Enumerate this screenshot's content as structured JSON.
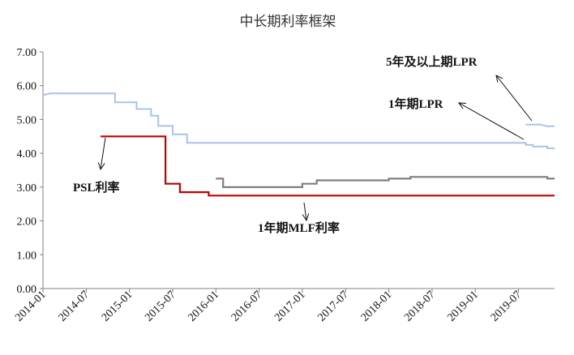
{
  "chart_data": {
    "type": "line",
    "title": "中长期利率框架",
    "xlabel": "",
    "ylabel": "",
    "ylim": [
      0,
      7
    ],
    "yticks": [
      "0.00",
      "1.00",
      "2.00",
      "3.00",
      "4.00",
      "5.00",
      "6.00",
      "7.00"
    ],
    "xlim": [
      "2014-01",
      "2019-12"
    ],
    "xticks": [
      "2014-01",
      "2014-07",
      "2015-01",
      "2015-07",
      "2016-01",
      "2016-07",
      "2017-01",
      "2017-07",
      "2018-01",
      "2018-07",
      "2019-01",
      "2019-07"
    ],
    "grid": false,
    "series": [
      {
        "name": "5年及以上期LPR",
        "color": "#a9c4e6",
        "points": [
          [
            "2019-08",
            4.85
          ],
          [
            "2019-10",
            4.85
          ],
          [
            "2019-11",
            4.8
          ],
          [
            "2019-12",
            4.8
          ]
        ]
      },
      {
        "name": "1年期LPR",
        "color": "#a9c4e6",
        "points": [
          [
            "2014-01",
            5.72
          ],
          [
            "2014-02",
            5.77
          ],
          [
            "2014-11",
            5.77
          ],
          [
            "2014-11",
            5.51
          ],
          [
            "2015-02",
            5.51
          ],
          [
            "2015-02",
            5.31
          ],
          [
            "2015-04",
            5.31
          ],
          [
            "2015-04",
            5.11
          ],
          [
            "2015-05",
            5.11
          ],
          [
            "2015-05",
            4.81
          ],
          [
            "2015-07",
            4.81
          ],
          [
            "2015-07",
            4.56
          ],
          [
            "2015-09",
            4.56
          ],
          [
            "2015-09",
            4.31
          ],
          [
            "2018-07",
            4.31
          ],
          [
            "2019-08",
            4.31
          ],
          [
            "2019-08",
            4.25
          ],
          [
            "2019-09",
            4.25
          ],
          [
            "2019-09",
            4.2
          ],
          [
            "2019-11",
            4.2
          ],
          [
            "2019-11",
            4.15
          ],
          [
            "2019-12",
            4.15
          ]
        ]
      },
      {
        "name": "PSL利率",
        "color": "#c00000",
        "points": [
          [
            "2014-09",
            4.5
          ],
          [
            "2015-06",
            4.5
          ],
          [
            "2015-06",
            3.1
          ],
          [
            "2015-08",
            3.1
          ],
          [
            "2015-08",
            2.85
          ],
          [
            "2015-12",
            2.85
          ],
          [
            "2015-12",
            2.75
          ],
          [
            "2019-12",
            2.75
          ]
        ]
      },
      {
        "name": "1年期MLF利率",
        "color": "#7f7f7f",
        "points": [
          [
            "2016-01",
            3.25
          ],
          [
            "2016-02",
            3.25
          ],
          [
            "2016-02",
            3.0
          ],
          [
            "2017-01",
            3.0
          ],
          [
            "2017-01",
            3.1
          ],
          [
            "2017-03",
            3.1
          ],
          [
            "2017-03",
            3.2
          ],
          [
            "2018-01",
            3.2
          ],
          [
            "2018-01",
            3.25
          ],
          [
            "2018-04",
            3.25
          ],
          [
            "2018-04",
            3.3
          ],
          [
            "2019-11",
            3.3
          ],
          [
            "2019-11",
            3.25
          ],
          [
            "2019-12",
            3.25
          ]
        ]
      }
    ],
    "annotations": [
      {
        "text": "5年及以上期LPR",
        "series": "5年及以上期LPR"
      },
      {
        "text": "1年期LPR",
        "series": "1年期LPR"
      },
      {
        "text": "PSL利率",
        "series": "PSL利率"
      },
      {
        "text": "1年期MLF利率",
        "series": "1年期MLF利率"
      }
    ]
  }
}
